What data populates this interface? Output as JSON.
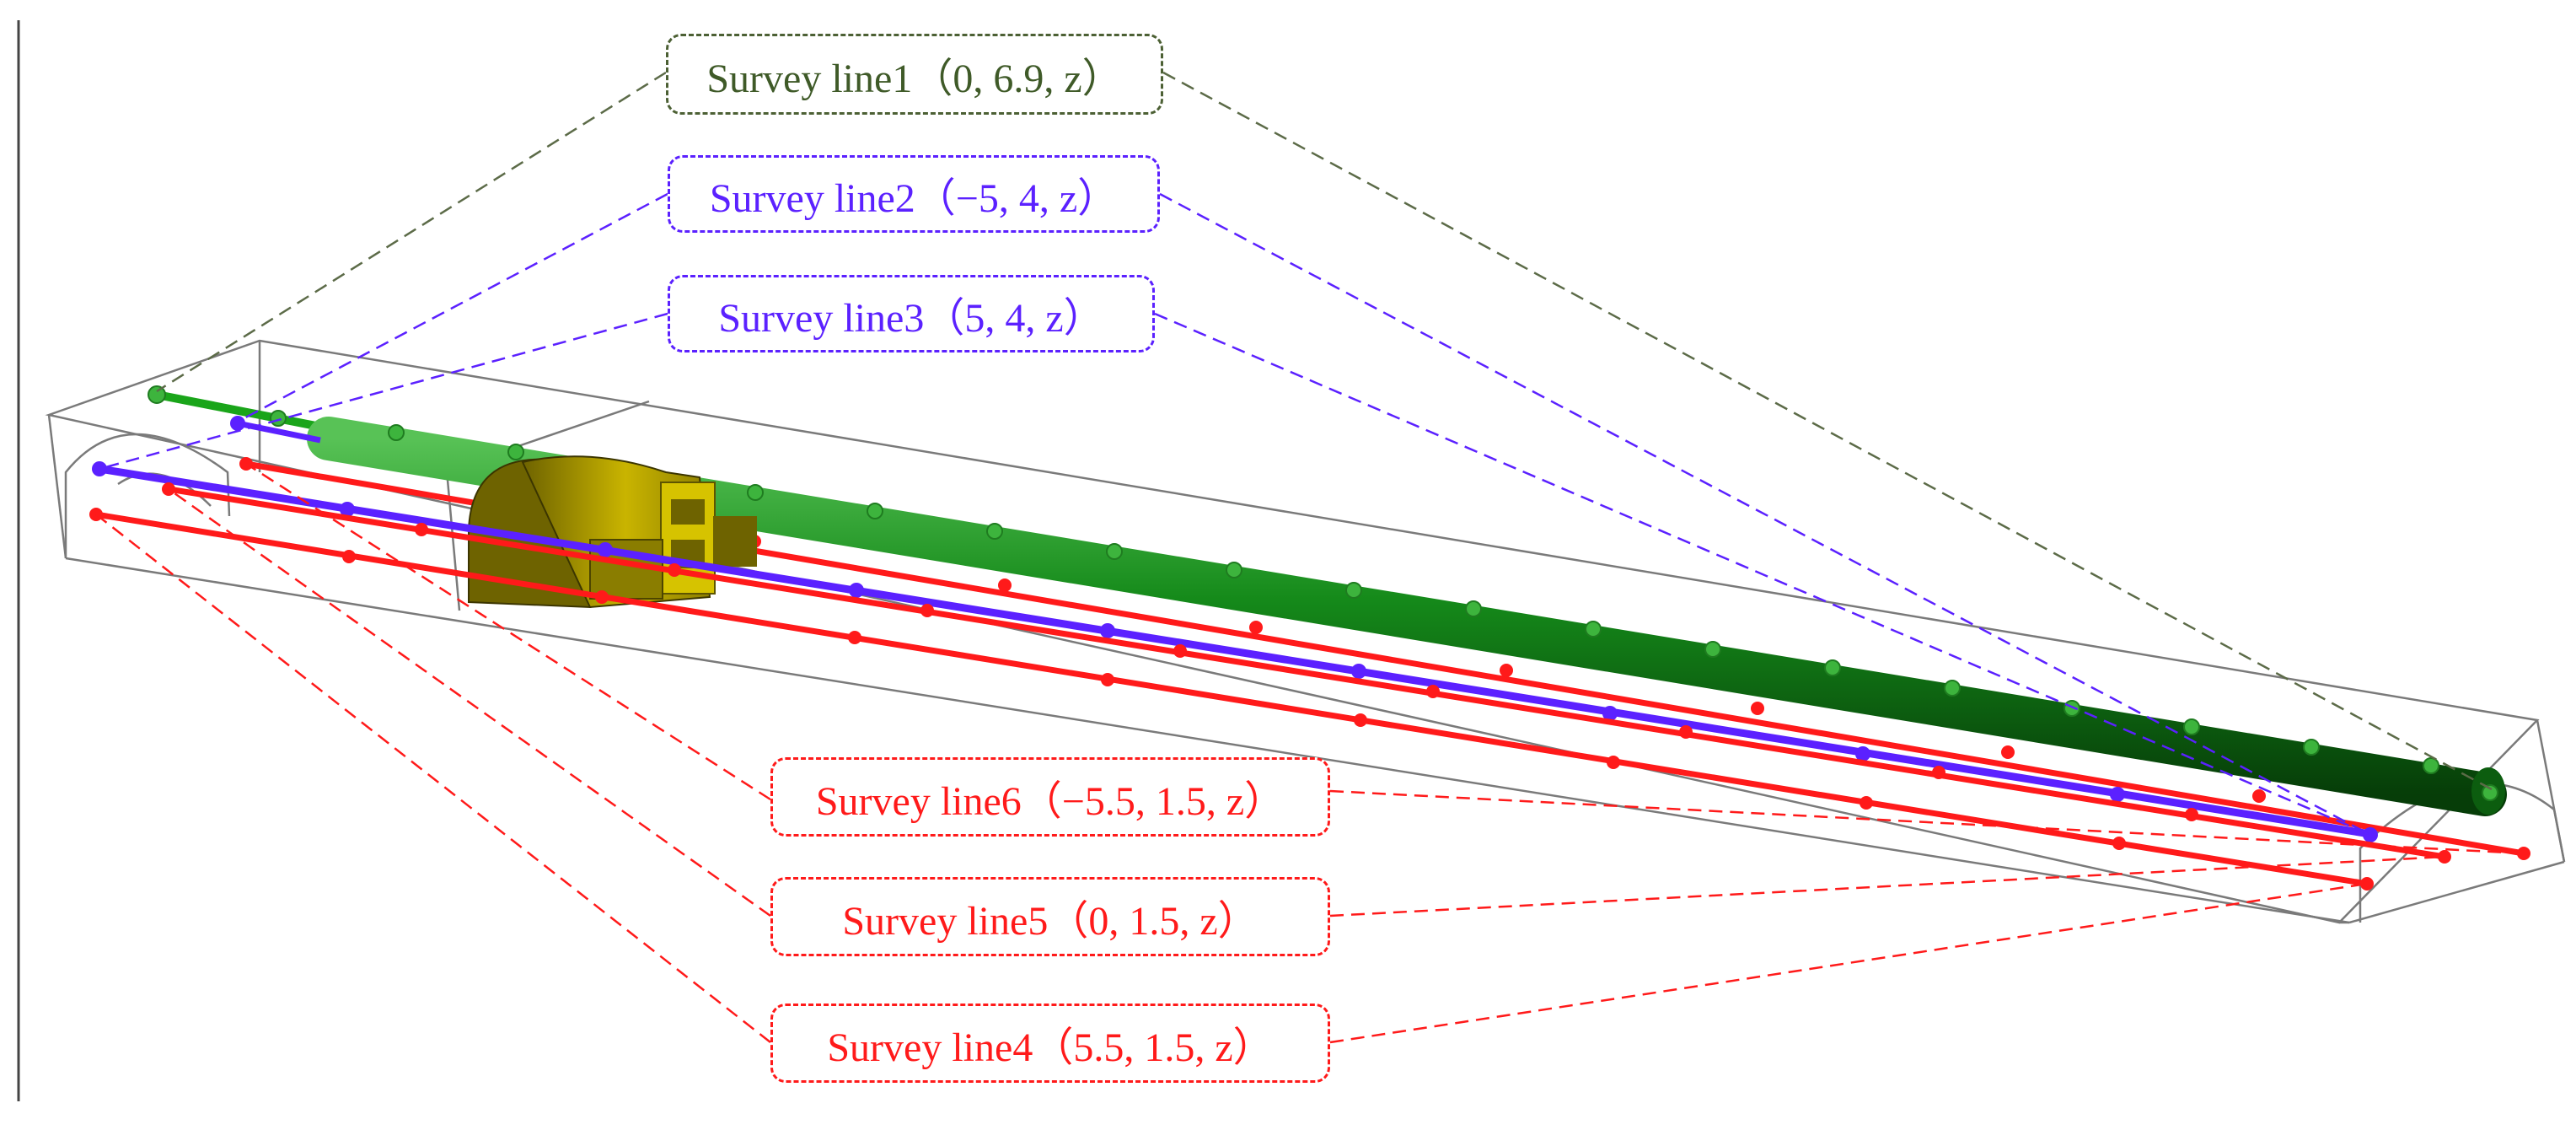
{
  "survey_lines": [
    {
      "id": "line1",
      "text": "Survey line1（0, 6.9, z）",
      "color": "#3f5a28"
    },
    {
      "id": "line2",
      "text": "Survey line2（−5, 4, z）",
      "color": "#5b21ff"
    },
    {
      "id": "line3",
      "text": "Survey line3（5, 4, z）",
      "color": "#5b21ff"
    },
    {
      "id": "line6",
      "text": "Survey line6（−5.5, 1.5, z）",
      "color": "#ff1a1a"
    },
    {
      "id": "line5",
      "text": "Survey line5（0, 1.5, z）",
      "color": "#ff1a1a"
    },
    {
      "id": "line4",
      "text": "Survey line4（5.5, 1.5, z）",
      "color": "#ff1a1a"
    }
  ],
  "colors": {
    "pipe": "#0f6b12",
    "pipe_dot": "#3db43d",
    "red_line": "#ff1a1a",
    "blue_line": "#5b21ff",
    "box": "#777777",
    "frame": "#b8a600"
  }
}
